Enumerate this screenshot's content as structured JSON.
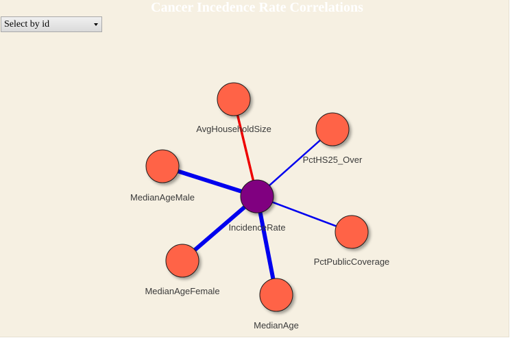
{
  "title": "Cancer Incedence Rate Correlations",
  "selector": {
    "selected": "Select by id"
  },
  "colors": {
    "background": "#f6f0e2",
    "center_node": "#800080",
    "outer_node": "#ff6347",
    "negative_edge": "#0000ee",
    "positive_edge": "#ee0000"
  },
  "graph": {
    "center": {
      "id": "IncidenceRate",
      "label": "IncidenceRate"
    },
    "nodes": [
      {
        "id": "AvgHouseholdSize",
        "label": "AvgHouseholdSize",
        "sign": "positive",
        "strength": 3
      },
      {
        "id": "PctHS25_Over",
        "label": "PctHS25_Over",
        "sign": "negative",
        "strength": 2
      },
      {
        "id": "MedianAgeMale",
        "label": "MedianAgeMale",
        "sign": "negative",
        "strength": 5
      },
      {
        "id": "PctPublicCoverage",
        "label": "PctPublicCoverage",
        "sign": "negative",
        "strength": 2
      },
      {
        "id": "MedianAgeFemale",
        "label": "MedianAgeFemale",
        "sign": "negative",
        "strength": 5
      },
      {
        "id": "MedianAge",
        "label": "MedianAge",
        "sign": "negative",
        "strength": 5
      }
    ]
  }
}
